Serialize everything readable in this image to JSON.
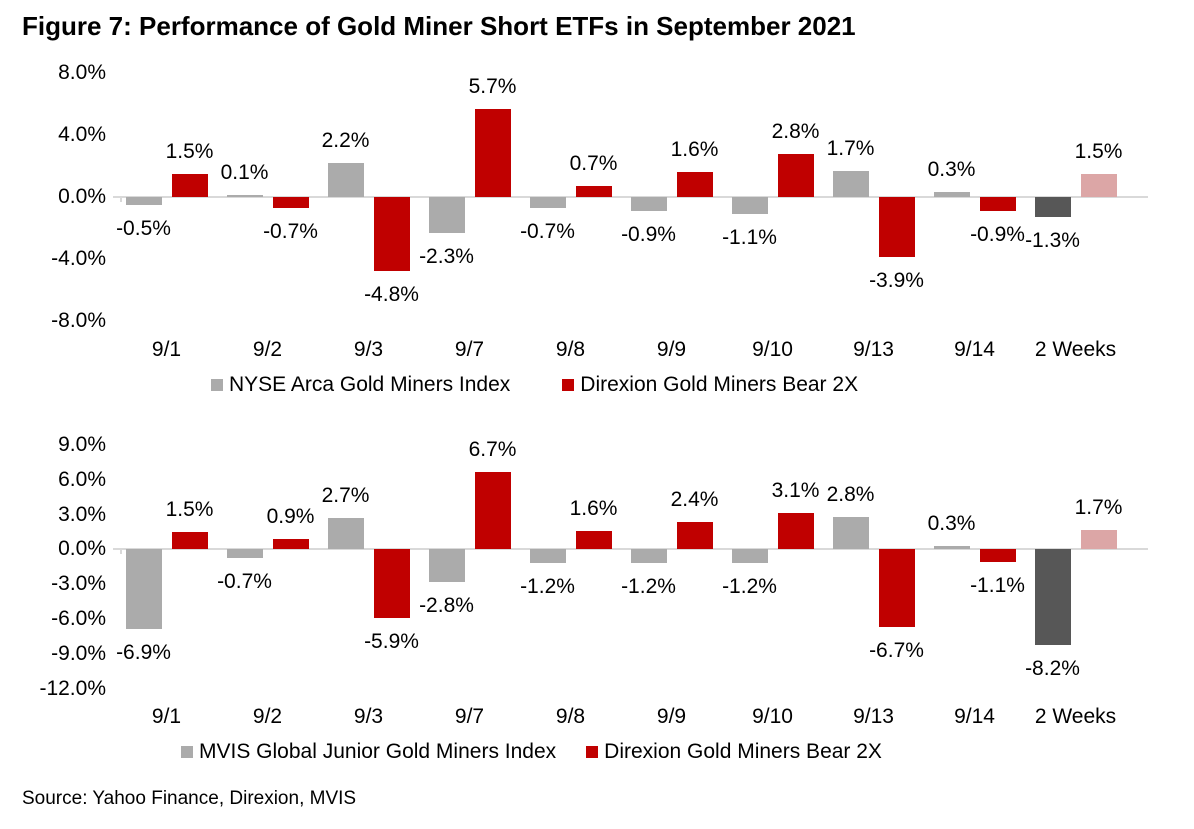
{
  "page": {
    "title": "Figure 7: Performance of Gold Miner Short ETFs in September 2021",
    "source": "Source: Yahoo Finance, Direxion, MVIS"
  },
  "colors": {
    "zero_line": "#D9D9D9",
    "text": "#000000",
    "index_gray": "#ABABAB",
    "bear_red": "#C00000",
    "two_weeks_index_gray": "#575757",
    "two_weeks_bear_pink": "#DCA6A6"
  },
  "chart_data": [
    {
      "type": "bar",
      "title": "",
      "categories": [
        "9/1",
        "9/2",
        "9/3",
        "9/7",
        "9/8",
        "9/9",
        "9/10",
        "9/13",
        "9/14",
        "2 Weeks"
      ],
      "series": [
        {
          "name": "NYSE Arca Gold Miners Index",
          "color_key": "index_gray",
          "highlight_color_key": "two_weeks_index_gray",
          "values": [
            -0.5,
            0.1,
            2.2,
            -2.3,
            -0.7,
            -0.9,
            -1.1,
            1.7,
            0.3,
            -1.3
          ],
          "labels": [
            "-0.5%",
            "0.1%",
            "2.2%",
            "-2.3%",
            "-0.7%",
            "-0.9%",
            "-1.1%",
            "1.7%",
            "0.3%",
            "-1.3%"
          ]
        },
        {
          "name": "Direxion Gold Miners Bear 2X",
          "color_key": "bear_red",
          "highlight_color_key": "two_weeks_bear_pink",
          "values": [
            1.5,
            -0.7,
            -4.8,
            5.7,
            0.7,
            1.6,
            2.8,
            -3.9,
            -0.9,
            1.5
          ],
          "labels": [
            "1.5%",
            "-0.7%",
            "-4.8%",
            "5.7%",
            "0.7%",
            "1.6%",
            "2.8%",
            "-3.9%",
            "-0.9%",
            "1.5%"
          ]
        }
      ],
      "highlight_category": "2 Weeks",
      "ylim": [
        -8,
        8
      ],
      "ytick_values": [
        8,
        4,
        0,
        -4,
        -8
      ],
      "ytick_labels": [
        "8.0%",
        "4.0%",
        "0.0%",
        "-4.0%",
        "-8.0%"
      ],
      "legend_position": "bottom",
      "grid": false
    },
    {
      "type": "bar",
      "title": "",
      "categories": [
        "9/1",
        "9/2",
        "9/3",
        "9/7",
        "9/8",
        "9/9",
        "9/10",
        "9/13",
        "9/14",
        "2 Weeks"
      ],
      "series": [
        {
          "name": "MVIS Global Junior Gold Miners Index",
          "color_key": "index_gray",
          "highlight_color_key": "two_weeks_index_gray",
          "values": [
            -6.9,
            -0.7,
            2.7,
            -2.8,
            -1.2,
            -1.2,
            -1.2,
            2.8,
            0.3,
            -8.2
          ],
          "labels": [
            "-6.9%",
            "-0.7%",
            "2.7%",
            "-2.8%",
            "-1.2%",
            "-1.2%",
            "-1.2%",
            "2.8%",
            "0.3%",
            "-8.2%"
          ]
        },
        {
          "name": "Direxion Gold Miners Bear 2X",
          "color_key": "bear_red",
          "highlight_color_key": "two_weeks_bear_pink",
          "values": [
            1.5,
            0.9,
            -5.9,
            6.7,
            1.6,
            2.4,
            3.1,
            -6.7,
            -1.1,
            1.7
          ],
          "labels": [
            "1.5%",
            "0.9%",
            "-5.9%",
            "6.7%",
            "1.6%",
            "2.4%",
            "3.1%",
            "-6.7%",
            "-1.1%",
            "1.7%"
          ]
        }
      ],
      "highlight_category": "2 Weeks",
      "ylim": [
        -12,
        9
      ],
      "ytick_values": [
        9,
        6,
        3,
        0,
        -3,
        -6,
        -9,
        -12
      ],
      "ytick_labels": [
        "9.0%",
        "6.0%",
        "3.0%",
        "0.0%",
        "-3.0%",
        "-6.0%",
        "-9.0%",
        "-12.0%"
      ],
      "legend_position": "bottom",
      "grid": false
    }
  ]
}
